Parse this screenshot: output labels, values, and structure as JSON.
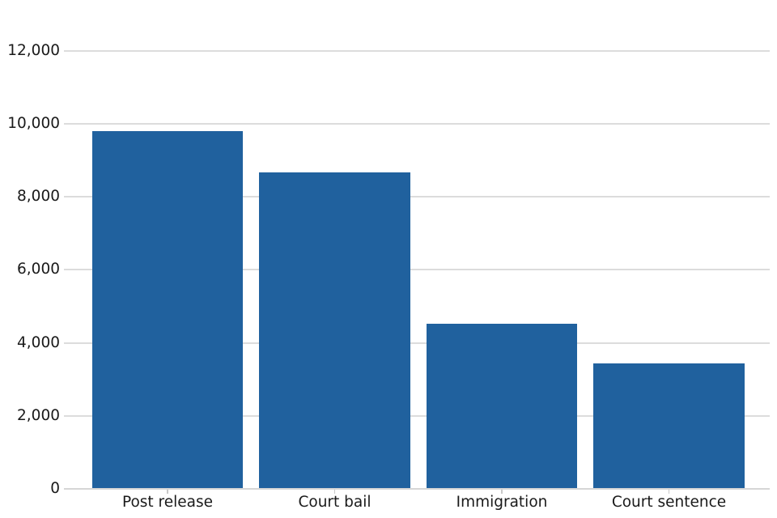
{
  "chart_data": {
    "type": "bar",
    "title": "",
    "xlabel": "",
    "ylabel": "",
    "categories": [
      "Post release",
      "Court bail",
      "Immigration",
      "Court sentence"
    ],
    "values": [
      9805,
      8675,
      4510,
      3430
    ],
    "ylim": [
      0,
      12000
    ],
    "yticks": [
      0,
      2000,
      4000,
      6000,
      8000,
      10000,
      12000
    ],
    "ytick_labels": [
      "0",
      "2,000",
      "4,000",
      "6,000",
      "8,000",
      "10,000",
      "12,000"
    ],
    "grid": "horizontal",
    "legend": "none",
    "colors": {
      "bar": "#20619e",
      "gridline": "#dcdcdc",
      "baseline": "#d6d6d6",
      "tick": "#c9c9c9",
      "text": "#1a1a1a",
      "background": "#ffffff"
    }
  }
}
